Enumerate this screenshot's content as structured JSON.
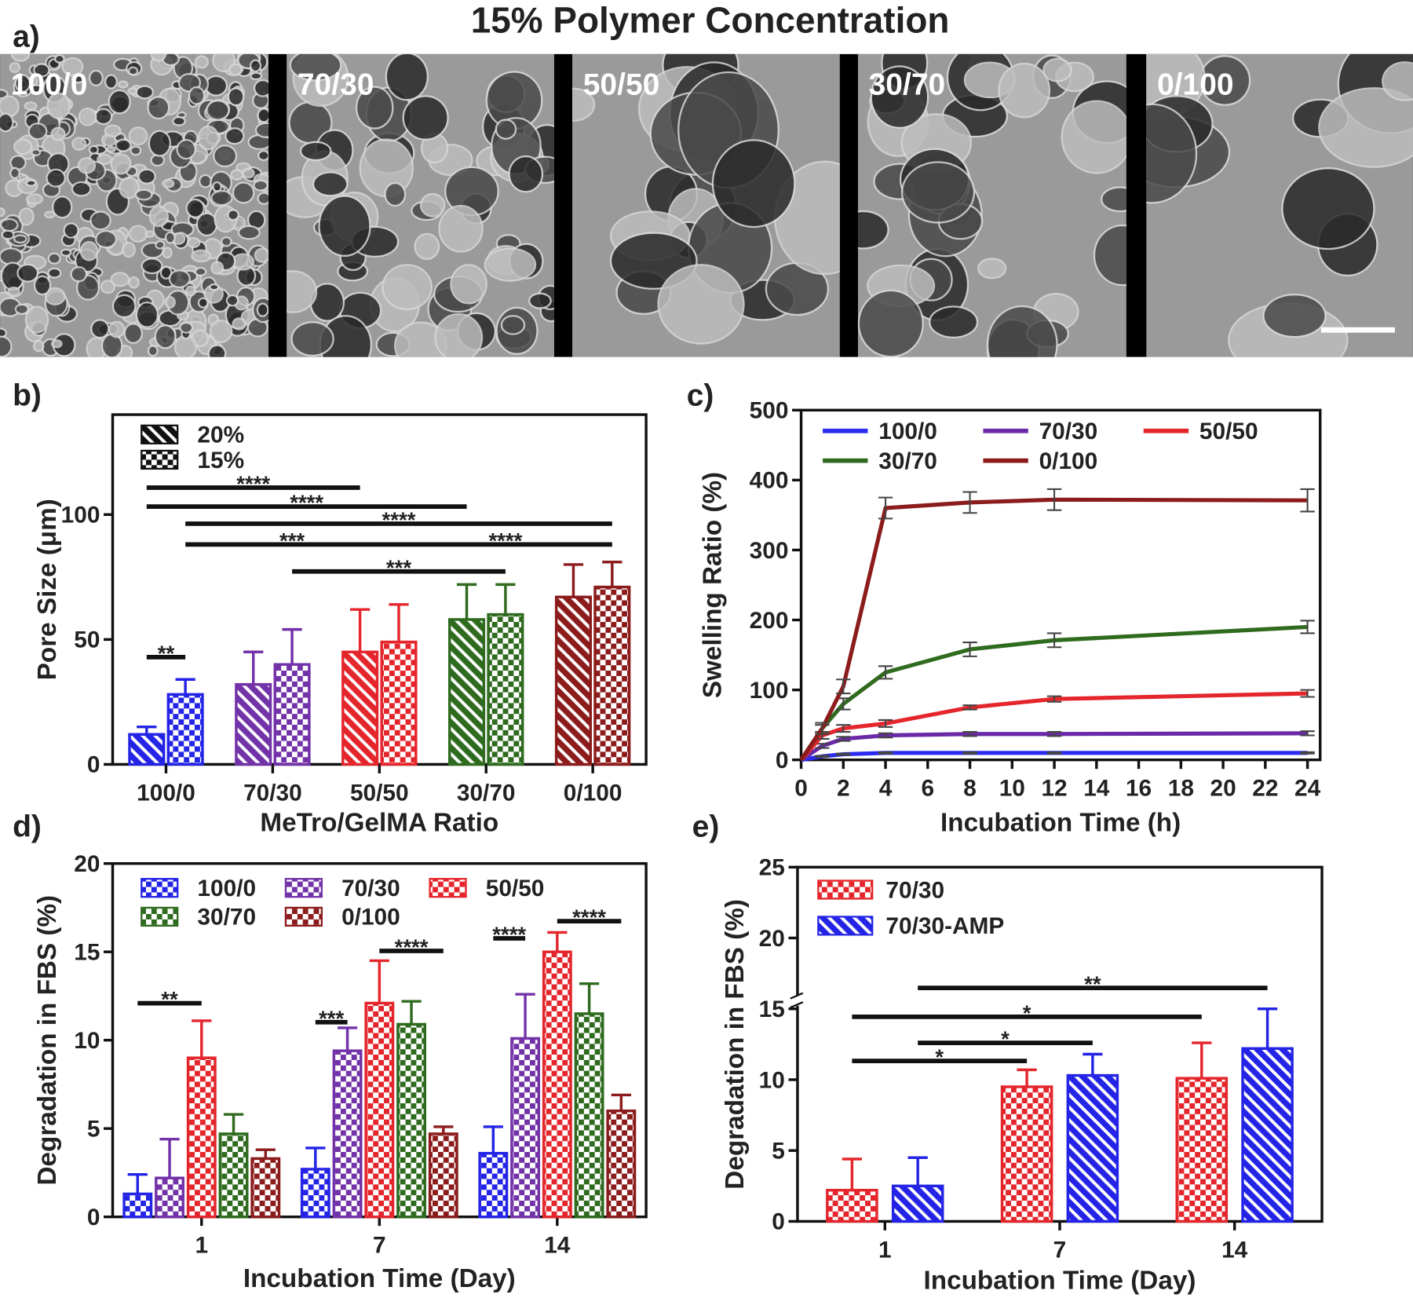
{
  "panel_labels": [
    "a)",
    "b)",
    "c)",
    "d)",
    "e)"
  ],
  "panel_a": {
    "title": "15% Polymer Concentration",
    "images": [
      "100/0",
      "70/30",
      "50/50",
      "30/70",
      "0/100"
    ]
  },
  "chart_data": [
    {
      "type": "bar",
      "y_label": "Pore  Size (μm)",
      "x_label": "MeTro/GelMA Ratio",
      "categories": [
        "100/0",
        "70/30",
        "50/50",
        "30/70",
        "0/100"
      ],
      "category_colors": [
        "#2424e6",
        "#7232a8",
        "#e4262c",
        "#2f6b1f",
        "#8c1c1c"
      ],
      "series": [
        {
          "name": "20%",
          "pattern": "hatch",
          "values": [
            12,
            32,
            45,
            58,
            67
          ],
          "errors": [
            3,
            13,
            17,
            14,
            13
          ]
        },
        {
          "name": "15%",
          "pattern": "checker",
          "values": [
            28,
            40,
            49,
            60,
            71
          ],
          "errors": [
            6,
            14,
            15,
            12,
            10
          ]
        }
      ],
      "ylim": [
        0,
        140
      ],
      "yticks": [
        0,
        50,
        100
      ],
      "legend": "upper left",
      "comparisons": [
        {
          "label": "**",
          "from": [
            0,
            0
          ],
          "to": [
            0,
            1
          ]
        },
        {
          "label": "****",
          "from": [
            0,
            0
          ],
          "to": [
            2,
            0
          ]
        },
        {
          "label": "****",
          "from": [
            0,
            0
          ],
          "to": [
            3,
            0
          ]
        },
        {
          "label": "****",
          "from": [
            0,
            1
          ],
          "to": [
            4,
            1
          ]
        },
        {
          "label": "***",
          "from": [
            0,
            1
          ],
          "to": [
            2,
            1
          ]
        },
        {
          "label": "****",
          "from": [
            2,
            1
          ],
          "to": [
            4,
            1
          ]
        },
        {
          "label": "***",
          "from": [
            1,
            1
          ],
          "to": [
            3,
            1
          ]
        }
      ]
    },
    {
      "type": "line",
      "y_label": "Swelling Ratio (%)",
      "x_label": "Incubation Time (h)",
      "x": [
        0,
        1,
        2,
        4,
        8,
        12,
        24
      ],
      "series": [
        {
          "name": "100/0",
          "color": "#2a2af0",
          "values": [
            0,
            5,
            8,
            10,
            10,
            10,
            10
          ],
          "errors": [
            0,
            1,
            1,
            1,
            1,
            1,
            1
          ]
        },
        {
          "name": "70/30",
          "color": "#6a2aa8",
          "values": [
            0,
            20,
            30,
            35,
            37,
            37,
            38
          ],
          "errors": [
            0,
            3,
            3,
            3,
            3,
            3,
            3
          ]
        },
        {
          "name": "50/50",
          "color": "#e4262c",
          "values": [
            0,
            35,
            45,
            52,
            75,
            87,
            95
          ],
          "errors": [
            0,
            5,
            5,
            5,
            3,
            4,
            5
          ]
        },
        {
          "name": "30/70",
          "color": "#2f6b1f",
          "values": [
            0,
            45,
            80,
            125,
            158,
            171,
            190
          ],
          "errors": [
            0,
            5,
            8,
            9,
            10,
            10,
            9
          ]
        },
        {
          "name": "0/100",
          "color": "#8c1c1c",
          "values": [
            0,
            45,
            105,
            360,
            368,
            372,
            371
          ],
          "errors": [
            0,
            8,
            10,
            15,
            15,
            15,
            16
          ]
        }
      ],
      "xlim": [
        0,
        24.6
      ],
      "xticks": [
        0,
        2,
        4,
        6,
        8,
        10,
        12,
        14,
        16,
        18,
        20,
        22,
        24
      ],
      "ylim": [
        0,
        500
      ],
      "yticks": [
        0,
        100,
        200,
        300,
        400,
        500
      ],
      "legend": "upper left"
    },
    {
      "type": "bar",
      "y_label": "Degradation in FBS (%)",
      "x_label": "Incubation Time (Day)",
      "categories": [
        "1",
        "7",
        "14"
      ],
      "series": [
        {
          "name": "100/0",
          "color": "#2424e6",
          "pattern": "checker",
          "values": [
            1.3,
            2.7,
            3.6
          ],
          "errors": [
            1.1,
            1.2,
            1.5
          ]
        },
        {
          "name": "70/30",
          "color": "#7232a8",
          "pattern": "checker",
          "values": [
            2.2,
            9.4,
            10.1
          ],
          "errors": [
            2.2,
            1.3,
            2.5
          ]
        },
        {
          "name": "50/50",
          "color": "#e4262c",
          "pattern": "checker",
          "values": [
            9.0,
            12.1,
            15.0
          ],
          "errors": [
            2.1,
            2.4,
            1.1
          ]
        },
        {
          "name": "30/70",
          "color": "#2f6b1f",
          "pattern": "checker",
          "values": [
            4.7,
            10.9,
            11.5
          ],
          "errors": [
            1.1,
            1.3,
            1.7
          ]
        },
        {
          "name": "0/100",
          "color": "#8c1c1c",
          "pattern": "checker",
          "values": [
            3.3,
            4.7,
            6.0
          ],
          "errors": [
            0.5,
            0.4,
            0.9
          ]
        }
      ],
      "ylim": [
        0,
        20
      ],
      "yticks": [
        0,
        5,
        10,
        15,
        20
      ],
      "legend": "upper left",
      "comparisons": [
        {
          "label": "**",
          "from": [
            0,
            0
          ],
          "to": [
            0,
            2
          ]
        },
        {
          "label": "***",
          "from": [
            1,
            0
          ],
          "to": [
            1,
            1
          ]
        },
        {
          "label": "****",
          "from": [
            1,
            2
          ],
          "to": [
            1,
            4
          ]
        },
        {
          "label": "****",
          "from": [
            2,
            0
          ],
          "to": [
            2,
            1
          ]
        },
        {
          "label": "****",
          "from": [
            2,
            2
          ],
          "to": [
            2,
            4
          ]
        }
      ]
    },
    {
      "type": "bar",
      "y_label": "Degradation in FBS (%)",
      "x_label": "Incubation Time (Day)",
      "categories": [
        "1",
        "7",
        "14"
      ],
      "series": [
        {
          "name": "70/30",
          "color": "#e4262c",
          "pattern": "checker",
          "values": [
            2.2,
            9.5,
            10.1
          ],
          "errors": [
            2.2,
            1.2,
            2.5
          ]
        },
        {
          "name": "70/30-AMP",
          "color": "#2424e6",
          "pattern": "hatch",
          "values": [
            2.5,
            10.3,
            12.2
          ],
          "errors": [
            2.0,
            1.5,
            2.8
          ]
        }
      ],
      "ylim": [
        0,
        25
      ],
      "yticks": [
        0,
        5,
        10,
        15,
        20,
        25
      ],
      "legend": "upper left",
      "comparisons": [
        {
          "label": "**",
          "from": [
            0,
            1
          ],
          "to": [
            2,
            1
          ]
        },
        {
          "label": "*",
          "from": [
            0,
            0
          ],
          "to": [
            2,
            0
          ]
        },
        {
          "label": "*",
          "from": [
            0,
            1
          ],
          "to": [
            1,
            1
          ]
        },
        {
          "label": "*",
          "from": [
            0,
            0
          ],
          "to": [
            1,
            0
          ]
        }
      ]
    }
  ]
}
